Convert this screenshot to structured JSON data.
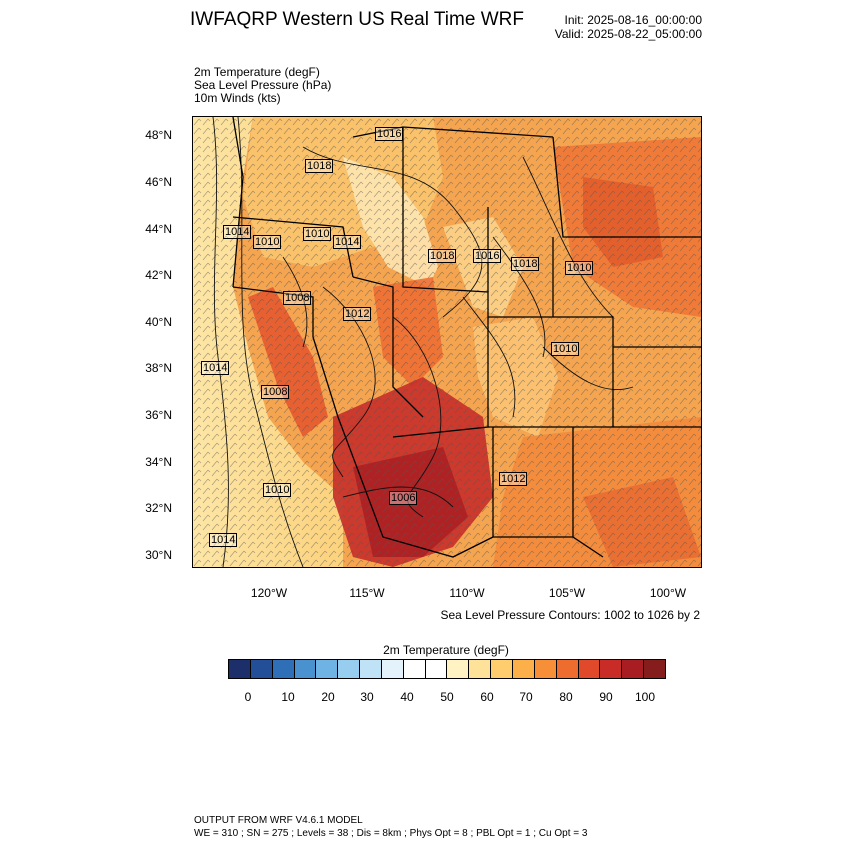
{
  "header": {
    "title": "IWFAQRP Western US Real Time WRF",
    "init": "Init: 2025-08-16_00:00:00",
    "valid": "Valid: 2025-08-22_05:00:00"
  },
  "fields": [
    "2m Temperature   (degF)",
    "Sea Level Pressure   (hPa)",
    "10m Winds   (kts)"
  ],
  "map": {
    "lat_labels": [
      "48°N",
      "46°N",
      "44°N",
      "42°N",
      "40°N",
      "38°N",
      "36°N",
      "34°N",
      "32°N",
      "30°N"
    ],
    "lon_labels": [
      "120°W",
      "115°W",
      "110°W",
      "105°W",
      "100°W"
    ],
    "pressure_labels": [
      "1016",
      "1018",
      "1014",
      "1010",
      "1010",
      "1014",
      "1018",
      "1016",
      "1018",
      "1010",
      "1008",
      "1012",
      "1010",
      "1014",
      "1008",
      "1006",
      "1010",
      "1014",
      "1012"
    ],
    "contour_note": "Sea Level Pressure Contours: 1002 to 1026 by 2"
  },
  "colorbar": {
    "title": "2m Temperature  (degF)",
    "colors": [
      "#1c2f6b",
      "#234f98",
      "#2f6fb8",
      "#4a91d0",
      "#6fb2e4",
      "#97cdef",
      "#c0e2f6",
      "#e4f2fb",
      "#ffffff",
      "#ffffff",
      "#fff3c4",
      "#ffe29a",
      "#ffcc6e",
      "#fdb04a",
      "#f78f38",
      "#ee6d2e",
      "#e04a2a",
      "#c92b27",
      "#a81d22",
      "#861d1d"
    ],
    "tick_labels": [
      "0",
      "10",
      "20",
      "30",
      "40",
      "50",
      "60",
      "70",
      "80",
      "90",
      "100"
    ]
  },
  "footer": {
    "line1": "OUTPUT FROM WRF V4.6.1 MODEL",
    "line2": "WE = 310 ; SN = 275 ; Levels = 38 ; Dis = 8km ; Phys Opt = 8 ; PBL Opt = 1 ; Cu Opt = 3"
  }
}
